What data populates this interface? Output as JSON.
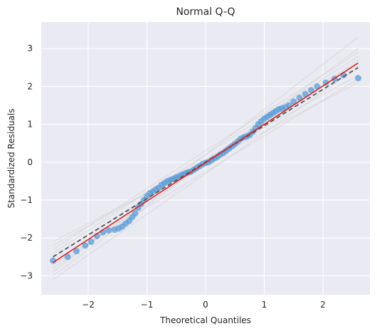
{
  "chart_data": {
    "type": "scatter",
    "title": "Normal Q-Q",
    "xlabel": "Theoretical Quantiles",
    "ylabel": "Standardized Residuals",
    "xlim": [
      -2.8,
      2.8
    ],
    "ylim": [
      -3.5,
      3.7
    ],
    "x_ticks": [
      -2,
      -1,
      0,
      1,
      2
    ],
    "x_tick_labels": [
      "−2",
      "−1",
      "0",
      "1",
      "2"
    ],
    "y_ticks": [
      -3,
      -2,
      -1,
      0,
      1,
      2,
      3
    ],
    "y_tick_labels": [
      "−3",
      "−2",
      "−1",
      "0",
      "1",
      "2",
      "3"
    ],
    "grid": true,
    "colors": {
      "background": "#eaeaf2",
      "grid": "#ffffff",
      "points": "#5b9bd5",
      "fit_line": "#d62728",
      "reference_line": "#555555",
      "envelope": "#d0d0d0"
    },
    "points": {
      "x": [
        -2.6,
        -2.35,
        -2.2,
        -2.05,
        -1.95,
        -1.85,
        -1.75,
        -1.65,
        -1.55,
        -1.48,
        -1.42,
        -1.36,
        -1.3,
        -1.25,
        -1.2,
        -1.15,
        -1.1,
        -1.05,
        -1.0,
        -0.95,
        -0.9,
        -0.85,
        -0.8,
        -0.75,
        -0.7,
        -0.65,
        -0.6,
        -0.55,
        -0.5,
        -0.45,
        -0.4,
        -0.35,
        -0.3,
        -0.25,
        -0.2,
        -0.15,
        -0.1,
        -0.05,
        0.0,
        0.05,
        0.1,
        0.15,
        0.2,
        0.25,
        0.3,
        0.35,
        0.4,
        0.45,
        0.5,
        0.55,
        0.6,
        0.65,
        0.7,
        0.75,
        0.8,
        0.85,
        0.9,
        0.95,
        1.0,
        1.05,
        1.1,
        1.15,
        1.2,
        1.25,
        1.3,
        1.36,
        1.42,
        1.5,
        1.6,
        1.7,
        1.8,
        1.9,
        2.05,
        2.2,
        2.35,
        2.6
      ],
      "y": [
        -2.6,
        -2.5,
        -2.35,
        -2.2,
        -2.1,
        -1.95,
        -1.85,
        -1.8,
        -1.78,
        -1.75,
        -1.7,
        -1.62,
        -1.55,
        -1.45,
        -1.35,
        -1.2,
        -1.1,
        -1.0,
        -0.9,
        -0.82,
        -0.78,
        -0.72,
        -0.68,
        -0.6,
        -0.55,
        -0.5,
        -0.47,
        -0.44,
        -0.4,
        -0.37,
        -0.33,
        -0.3,
        -0.27,
        -0.25,
        -0.2,
        -0.15,
        -0.1,
        -0.05,
        -0.02,
        0.0,
        0.05,
        0.1,
        0.14,
        0.2,
        0.24,
        0.3,
        0.36,
        0.42,
        0.48,
        0.55,
        0.62,
        0.66,
        0.68,
        0.72,
        0.8,
        0.9,
        1.0,
        1.08,
        1.15,
        1.2,
        1.25,
        1.3,
        1.35,
        1.4,
        1.42,
        1.45,
        1.5,
        1.6,
        1.7,
        1.8,
        1.9,
        2.0,
        2.1,
        2.2,
        2.3,
        2.22
      ]
    },
    "fit_line": {
      "x": [
        -2.6,
        2.6
      ],
      "y": [
        -2.65,
        2.62
      ]
    },
    "reference_line": {
      "x": [
        -2.6,
        2.6
      ],
      "y": [
        -2.5,
        2.5
      ]
    },
    "envelope_lines": [
      {
        "x": [
          -2.6,
          2.6
        ],
        "y": [
          -3.1,
          2.5
        ]
      },
      {
        "x": [
          -2.6,
          2.6
        ],
        "y": [
          -2.2,
          2.3
        ]
      },
      {
        "x": [
          -2.6,
          2.6
        ],
        "y": [
          -2.9,
          3.3
        ]
      },
      {
        "x": [
          -2.6,
          2.6
        ],
        "y": [
          -2.4,
          2.8
        ]
      },
      {
        "x": [
          -2.6,
          2.6
        ],
        "y": [
          -2.7,
          2.2
        ]
      },
      {
        "x": [
          -2.6,
          2.6
        ],
        "y": [
          -2.3,
          2.9
        ]
      },
      {
        "x": [
          -2.6,
          2.6
        ],
        "y": [
          -3.0,
          3.0
        ]
      },
      {
        "x": [
          -2.6,
          2.6
        ],
        "y": [
          -2.5,
          2.6
        ]
      },
      {
        "x": [
          -2.6,
          2.6
        ],
        "y": [
          -2.8,
          2.7
        ]
      },
      {
        "x": [
          -2.6,
          2.6
        ],
        "y": [
          -2.1,
          2.1
        ]
      }
    ]
  }
}
